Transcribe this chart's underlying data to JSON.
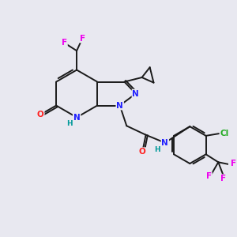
{
  "bg_color": "#e8e8f0",
  "atom_colors": {
    "C": "#1a1a1a",
    "N": "#2020ff",
    "O": "#ff2020",
    "F": "#ee00ee",
    "Cl": "#22aa22",
    "H": "#009999"
  },
  "bond_color": "#1a1a1a",
  "bond_width": 1.4,
  "figsize": [
    3.0,
    3.0
  ],
  "dpi": 100
}
